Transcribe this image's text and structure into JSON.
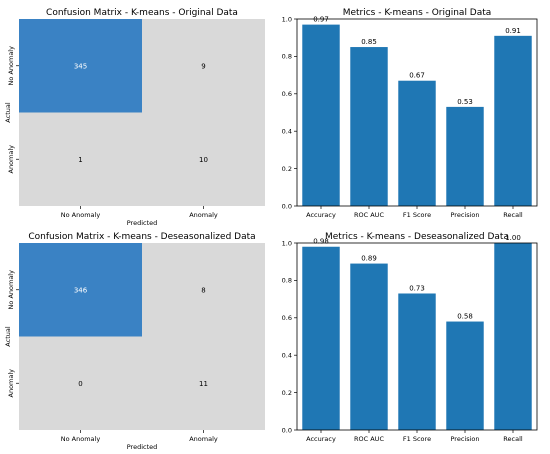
{
  "chart_data": [
    {
      "type": "heatmap",
      "title": "Confusion Matrix - K-means - Original Data",
      "xlabel": "Predicted",
      "ylabel": "Actual",
      "x_categories": [
        "No Anomaly",
        "Anomaly"
      ],
      "y_categories": [
        "No Anomaly",
        "Anomaly"
      ],
      "values": [
        [
          345,
          9
        ],
        [
          1,
          10
        ]
      ],
      "colors": {
        "high": "#3a82c4",
        "low": "#d9d9d9",
        "text_on_high": "#ffffff",
        "text_on_low": "#000000"
      }
    },
    {
      "type": "bar",
      "title": "Metrics - K-means - Original Data",
      "categories": [
        "Accuracy",
        "ROC AUC",
        "F1 Score",
        "Precision",
        "Recall"
      ],
      "values": [
        0.97,
        0.85,
        0.67,
        0.53,
        0.91
      ],
      "value_labels": [
        "0.97",
        "0.85",
        "0.67",
        "0.53",
        "0.91"
      ],
      "ylim": [
        0,
        1.0
      ],
      "yticks": [
        "0.0",
        "0.2",
        "0.4",
        "0.6",
        "0.8",
        "1.0"
      ],
      "bar_color": "#1f77b4"
    },
    {
      "type": "heatmap",
      "title": "Confusion Matrix - K-means - Deseasonalized Data",
      "xlabel": "Predicted",
      "ylabel": "Actual",
      "x_categories": [
        "No Anomaly",
        "Anomaly"
      ],
      "y_categories": [
        "No Anomaly",
        "Anomaly"
      ],
      "values": [
        [
          346,
          8
        ],
        [
          0,
          11
        ]
      ],
      "colors": {
        "high": "#3a82c4",
        "low": "#d9d9d9",
        "text_on_high": "#ffffff",
        "text_on_low": "#000000"
      }
    },
    {
      "type": "bar",
      "title": "Metrics - K-means - Deseasonalized Data",
      "categories": [
        "Accuracy",
        "ROC AUC",
        "F1 Score",
        "Precision",
        "Recall"
      ],
      "values": [
        0.98,
        0.89,
        0.73,
        0.58,
        1.0
      ],
      "value_labels": [
        "0.98",
        "0.89",
        "0.73",
        "0.58",
        "1.00"
      ],
      "ylim": [
        0,
        1.0
      ],
      "yticks": [
        "0.0",
        "0.2",
        "0.4",
        "0.6",
        "0.8",
        "1.0"
      ],
      "bar_color": "#1f77b4"
    }
  ]
}
